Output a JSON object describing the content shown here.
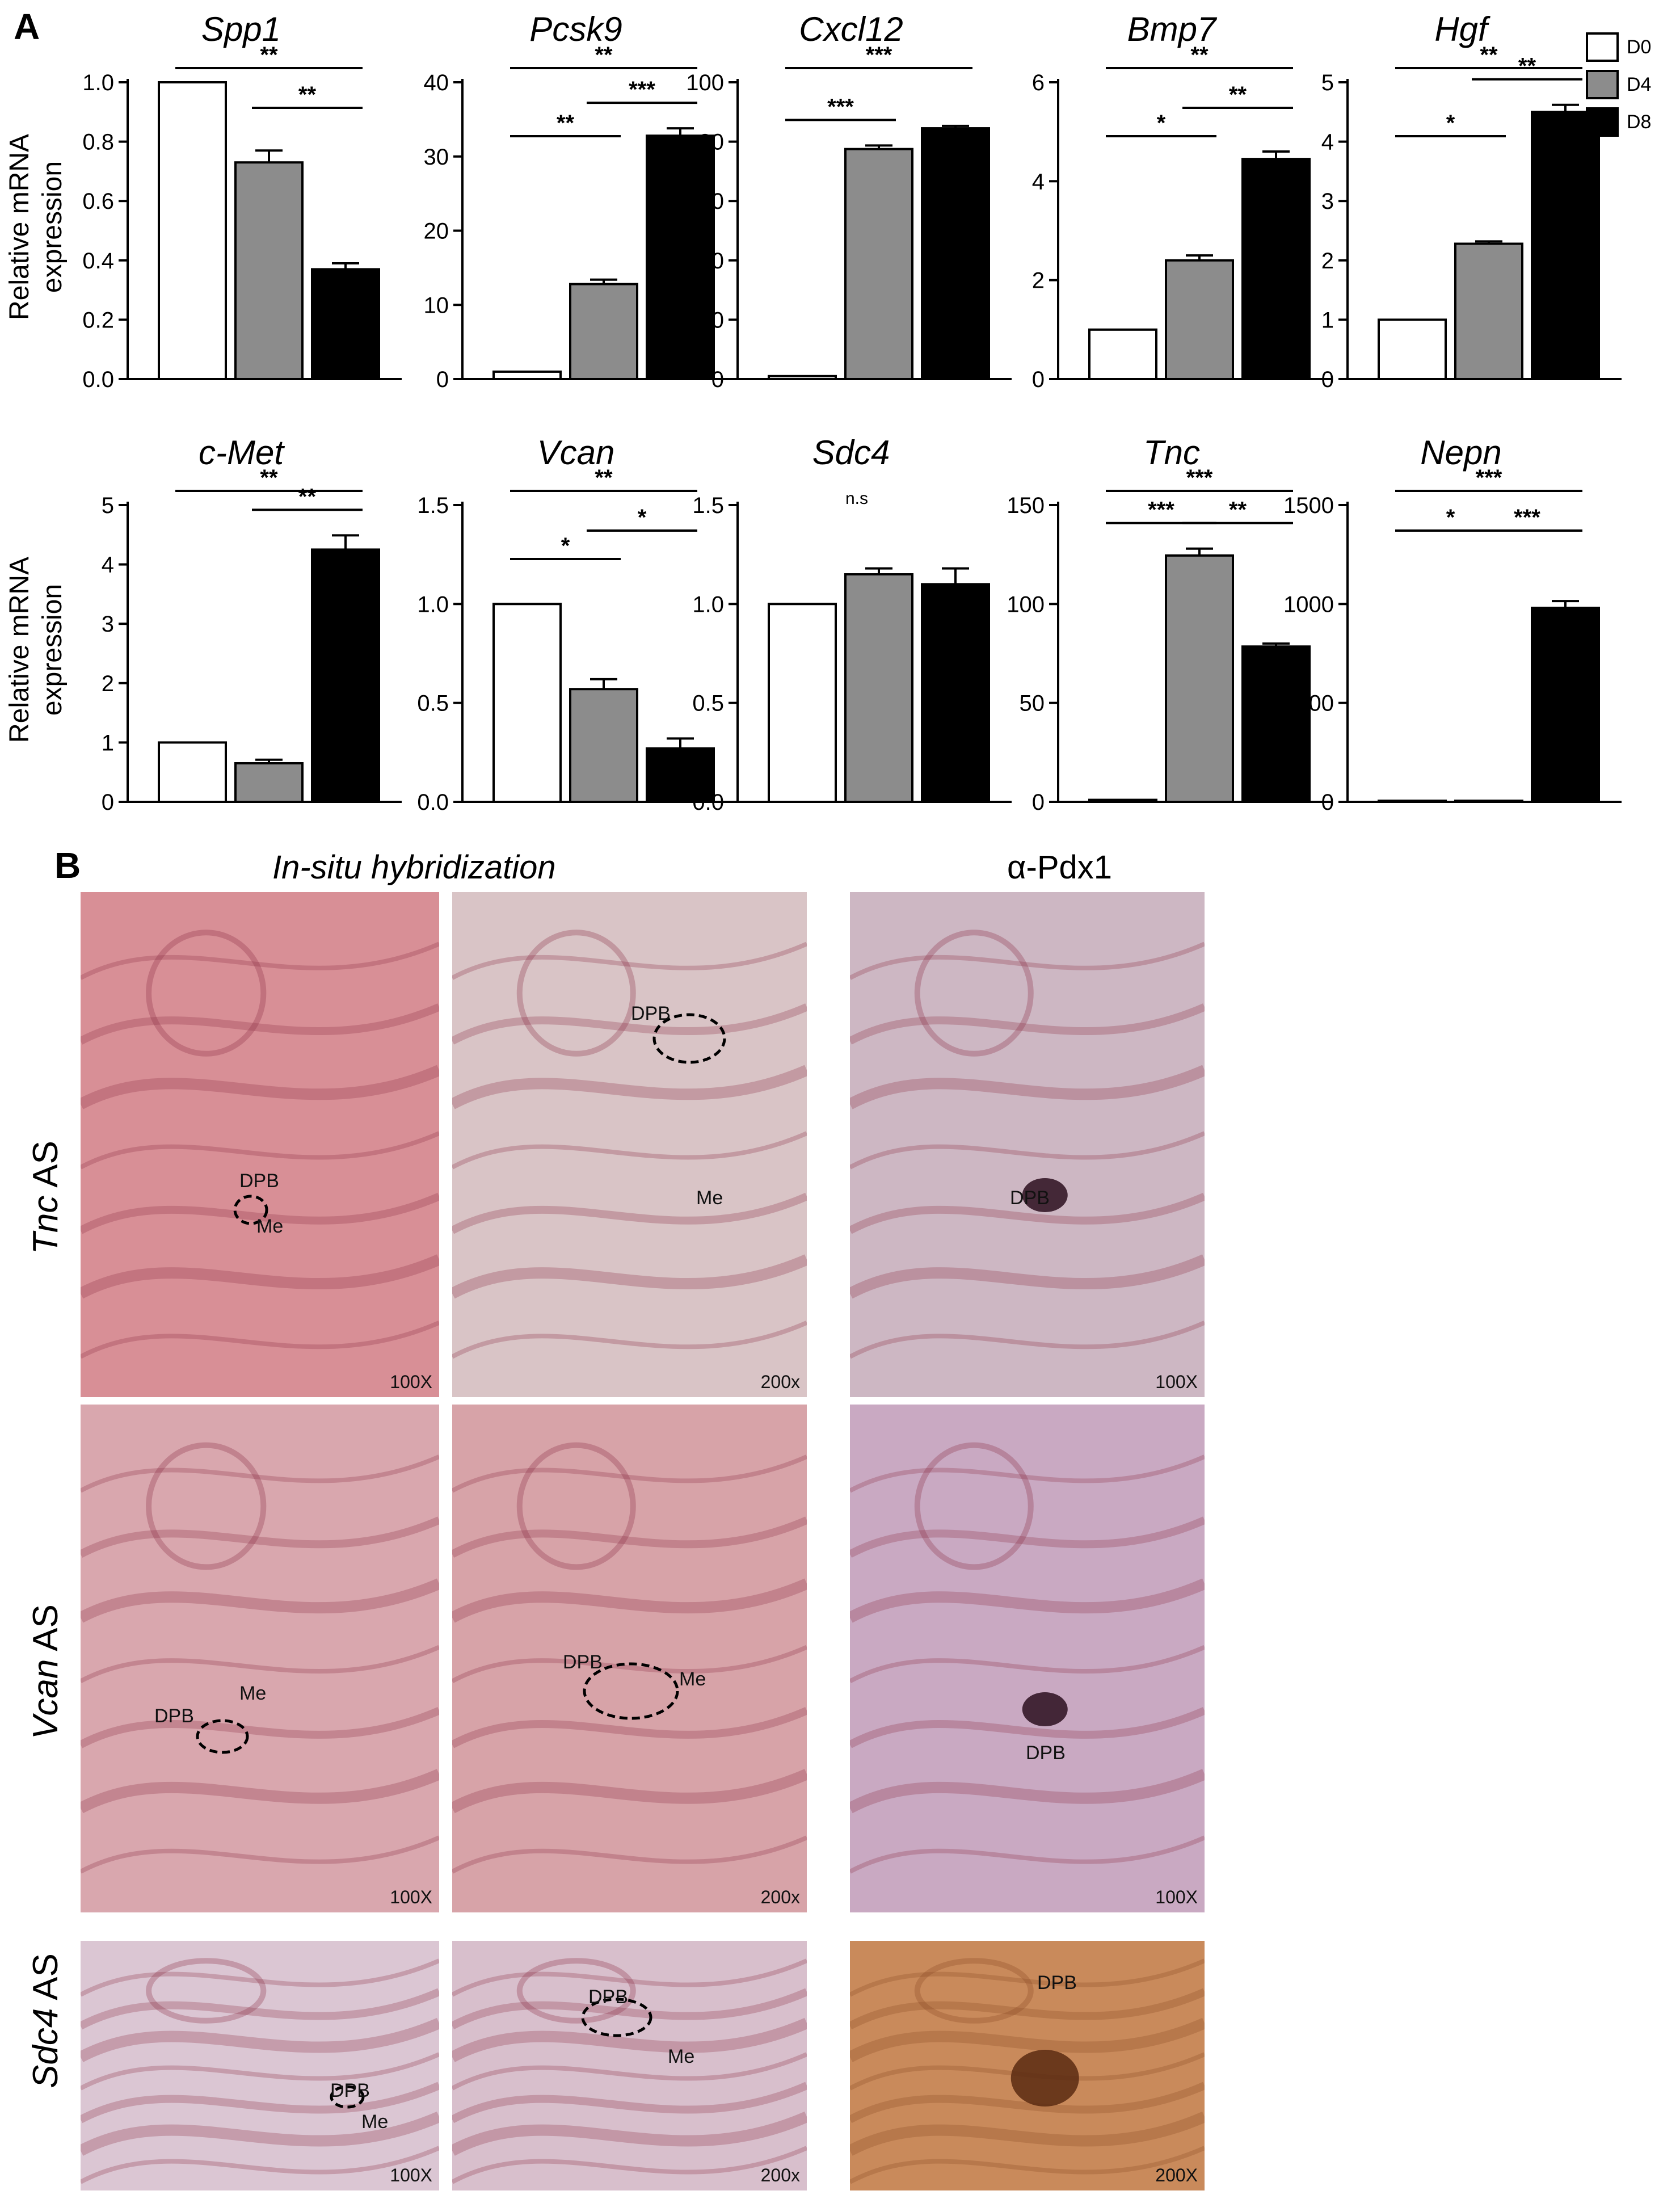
{
  "panel_a_label": "A",
  "panel_b_label": "B",
  "y_axis_label_line1": "Relative mRNA",
  "y_axis_label_line2": "expression",
  "legend": [
    {
      "label": "D0",
      "color": "#ffffff"
    },
    {
      "label": "D4",
      "color": "#8c8c8c"
    },
    {
      "label": "D8",
      "color": "#000000"
    }
  ],
  "chart_data": [
    {
      "type": "bar",
      "title": "Spp1",
      "categories": [
        "D0",
        "D4",
        "D8"
      ],
      "values": [
        1.0,
        0.73,
        0.37
      ],
      "errors": [
        0,
        0.04,
        0.02
      ],
      "ylim": [
        0,
        1.0
      ],
      "yticks": [
        "0.0",
        "0.2",
        "0.4",
        "0.6",
        "0.8",
        "1.0"
      ],
      "tick_values": [
        0,
        0.2,
        0.4,
        0.6,
        0.8,
        1.0
      ],
      "significance": [
        {
          "from": 0,
          "to": 2,
          "label": "**"
        },
        {
          "from": 1,
          "to": 2,
          "label": "**"
        }
      ]
    },
    {
      "type": "bar",
      "title": "Pcsk9",
      "categories": [
        "D0",
        "D4",
        "D8"
      ],
      "values": [
        1.0,
        12.8,
        32.8
      ],
      "errors": [
        0,
        0.6,
        1.0
      ],
      "ylim": [
        0,
        40
      ],
      "yticks": [
        "0",
        "10",
        "20",
        "30",
        "40"
      ],
      "tick_values": [
        0,
        10,
        20,
        30,
        40
      ],
      "significance": [
        {
          "from": 0,
          "to": 1,
          "label": "**"
        },
        {
          "from": 1,
          "to": 2,
          "label": "***"
        },
        {
          "from": 0,
          "to": 2,
          "label": "**"
        }
      ]
    },
    {
      "type": "bar",
      "title": "Cxcl12",
      "categories": [
        "D0",
        "D4",
        "D8"
      ],
      "values": [
        1.0,
        77.5,
        84.5
      ],
      "errors": [
        0,
        1.2,
        0.8
      ],
      "ylim": [
        0,
        100
      ],
      "yticks": [
        "0",
        "20",
        "40",
        "60",
        "80",
        "100"
      ],
      "tick_values": [
        0,
        20,
        40,
        60,
        80,
        100
      ],
      "significance": [
        {
          "from": 0,
          "to": 1,
          "label": "***"
        },
        {
          "from": 0,
          "to": 2,
          "label": "***"
        }
      ]
    },
    {
      "type": "bar",
      "title": "Bmp7",
      "categories": [
        "D0",
        "D4",
        "D8"
      ],
      "values": [
        1.0,
        2.4,
        4.45
      ],
      "errors": [
        0,
        0.1,
        0.15
      ],
      "ylim": [
        0,
        6
      ],
      "yticks": [
        "0",
        "2",
        "4",
        "6"
      ],
      "tick_values": [
        0,
        2,
        4,
        6
      ],
      "significance": [
        {
          "from": 0,
          "to": 1,
          "label": "*"
        },
        {
          "from": 1,
          "to": 2,
          "label": "**"
        },
        {
          "from": 0,
          "to": 2,
          "label": "**"
        }
      ]
    },
    {
      "type": "bar",
      "title": "Hgf",
      "categories": [
        "D0",
        "D4",
        "D8"
      ],
      "values": [
        1.0,
        2.28,
        4.5
      ],
      "errors": [
        0,
        0.04,
        0.12
      ],
      "ylim": [
        0,
        5
      ],
      "yticks": [
        "0",
        "1",
        "2",
        "3",
        "4",
        "5"
      ],
      "tick_values": [
        0,
        1,
        2,
        3,
        4,
        5
      ],
      "significance": [
        {
          "from": 0,
          "to": 1,
          "label": "*"
        },
        {
          "from": 1,
          "to": 2,
          "label": "**"
        },
        {
          "from": 0,
          "to": 2,
          "label": "**"
        }
      ]
    },
    {
      "type": "bar",
      "title": "c-Met",
      "categories": [
        "D0",
        "D4",
        "D8"
      ],
      "values": [
        1.0,
        0.65,
        4.25
      ],
      "errors": [
        0,
        0.06,
        0.24
      ],
      "ylim": [
        0,
        5
      ],
      "yticks": [
        "0",
        "1",
        "2",
        "3",
        "4",
        "5"
      ],
      "tick_values": [
        0,
        1,
        2,
        3,
        4,
        5
      ],
      "significance": [
        {
          "from": 1,
          "to": 2,
          "label": "**"
        },
        {
          "from": 0,
          "to": 2,
          "label": "**"
        }
      ]
    },
    {
      "type": "bar",
      "title": "Vcan",
      "categories": [
        "D0",
        "D4",
        "D8"
      ],
      "values": [
        1.0,
        0.57,
        0.27
      ],
      "errors": [
        0,
        0.05,
        0.05
      ],
      "ylim": [
        0,
        1.5
      ],
      "yticks": [
        "0.0",
        "0.5",
        "1.0",
        "1.5"
      ],
      "tick_values": [
        0,
        0.5,
        1.0,
        1.5
      ],
      "significance": [
        {
          "from": 0,
          "to": 1,
          "label": "*"
        },
        {
          "from": 1,
          "to": 2,
          "label": "*"
        },
        {
          "from": 0,
          "to": 2,
          "label": "**"
        }
      ]
    },
    {
      "type": "bar",
      "title": "Sdc4",
      "categories": [
        "D0",
        "D4",
        "D8"
      ],
      "values": [
        1.0,
        1.15,
        1.1
      ],
      "errors": [
        0,
        0.03,
        0.08
      ],
      "ylim": [
        0,
        1.5
      ],
      "yticks": [
        "0.0",
        "0.5",
        "1.0",
        "1.5"
      ],
      "tick_values": [
        0,
        0.5,
        1.0,
        1.5
      ],
      "annotation": "n.s",
      "significance": []
    },
    {
      "type": "bar",
      "title": "Tnc",
      "categories": [
        "D0",
        "D4",
        "D8"
      ],
      "values": [
        1.0,
        124.5,
        78.5
      ],
      "errors": [
        0,
        3.5,
        1.5
      ],
      "ylim": [
        0,
        150
      ],
      "yticks": [
        "0",
        "50",
        "100",
        "150"
      ],
      "tick_values": [
        0,
        50,
        100,
        150
      ],
      "significance": [
        {
          "from": 0,
          "to": 1,
          "label": "***"
        },
        {
          "from": 1,
          "to": 2,
          "label": "**"
        },
        {
          "from": 0,
          "to": 2,
          "label": "***"
        }
      ]
    },
    {
      "type": "bar",
      "title": "Nepn",
      "categories": [
        "D0",
        "D4",
        "D8"
      ],
      "values": [
        1.0,
        4.0,
        980
      ],
      "errors": [
        0,
        0,
        35
      ],
      "ylim": [
        0,
        1500
      ],
      "yticks": [
        "0",
        "500",
        "1000",
        "1500"
      ],
      "tick_values": [
        0,
        500,
        1000,
        1500
      ],
      "significance": [
        {
          "from": 0,
          "to": 1,
          "label": "*"
        },
        {
          "from": 1,
          "to": 2,
          "label": "***"
        },
        {
          "from": 0,
          "to": 2,
          "label": "***"
        }
      ]
    }
  ],
  "panel_b": {
    "title_ish": "In-situ hybridization",
    "title_pdx1": "α-Pdx1",
    "rows": [
      {
        "gene": "Tnc",
        "suffix": " AS"
      },
      {
        "gene": "Vcan",
        "suffix": " AS"
      },
      {
        "gene": "Sdc4",
        "suffix": " AS"
      }
    ],
    "images": [
      {
        "row": 0,
        "col": 0,
        "labels": [
          "DPB",
          "Me"
        ],
        "mag": "100X",
        "tint": "#d88f96"
      },
      {
        "row": 0,
        "col": 1,
        "labels": [
          "DPB",
          "Me"
        ],
        "mag": "200x",
        "tint": "#d9c4c6"
      },
      {
        "row": 0,
        "col": 2,
        "labels": [
          "DPB"
        ],
        "mag": "100X",
        "tint": "#cdb7c3"
      },
      {
        "row": 1,
        "col": 0,
        "labels": [
          "DPB",
          "Me"
        ],
        "mag": "100X",
        "tint": "#d9a7ae"
      },
      {
        "row": 1,
        "col": 1,
        "labels": [
          "DPB",
          "Me"
        ],
        "mag": "200x",
        "tint": "#d7a3a8"
      },
      {
        "row": 1,
        "col": 2,
        "labels": [
          "DPB"
        ],
        "mag": "100X",
        "tint": "#c9a9c2"
      },
      {
        "row": 2,
        "col": 0,
        "labels": [
          "DPB",
          "Me"
        ],
        "mag": "100X",
        "tint": "#dbc6d3"
      },
      {
        "row": 2,
        "col": 1,
        "labels": [
          "DPB",
          "Me"
        ],
        "mag": "200x",
        "tint": "#d8bfcc"
      },
      {
        "row": 2,
        "col": 2,
        "labels": [
          "DPB"
        ],
        "mag": "200X",
        "tint": "#c98a5b"
      }
    ]
  }
}
